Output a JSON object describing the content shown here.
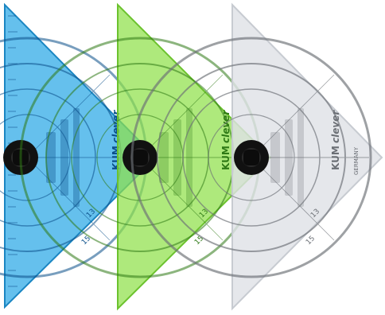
{
  "rulers": [
    {
      "color": "#2aa8e6",
      "edge": "#1b86c2",
      "ink": "#0b4f8a",
      "brand": "KUM",
      "script": "clever",
      "mark": "",
      "scale_a": "13",
      "scale_b": "15"
    },
    {
      "color": "#8fe04a",
      "edge": "#6cc22e",
      "ink": "#2f7a16",
      "brand": "KUM",
      "script": "clever",
      "mark": "",
      "scale_a": "13",
      "scale_b": "15"
    },
    {
      "color": "#dfe2e6",
      "edge": "#c7cbd1",
      "ink": "#6b6f75",
      "brand": "KUM",
      "script": "clever",
      "mark": "GERMANY",
      "scale_a": "13",
      "scale_b": "15"
    }
  ]
}
